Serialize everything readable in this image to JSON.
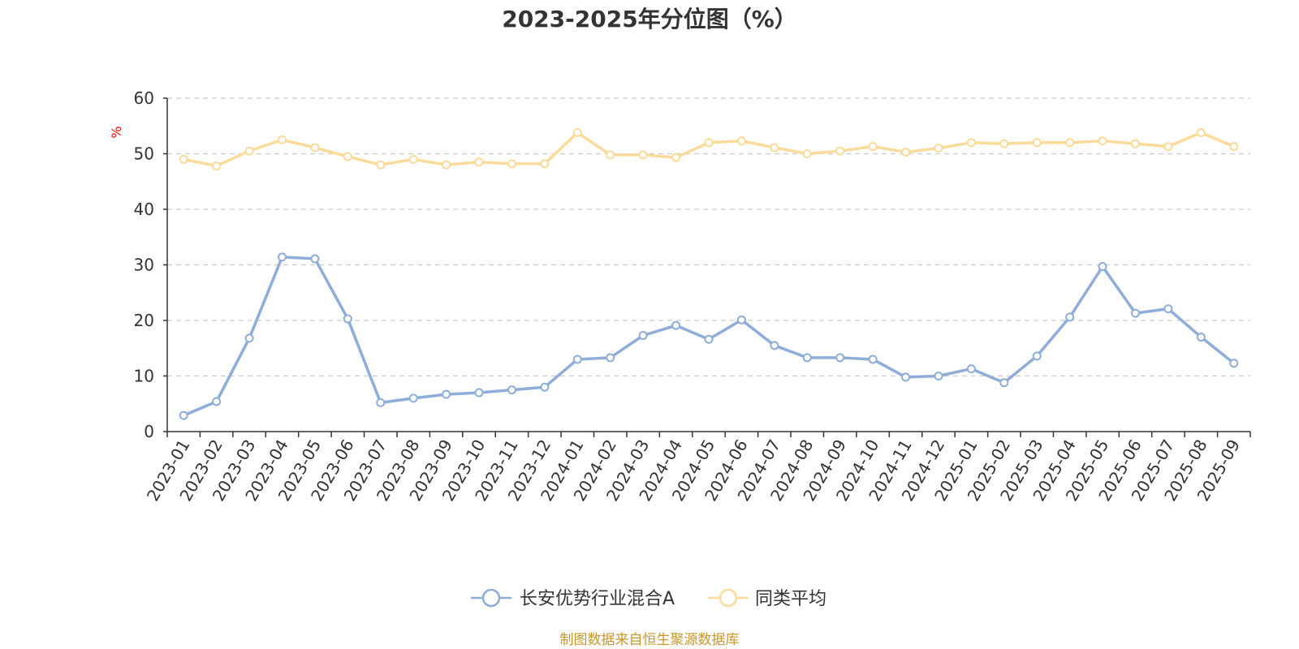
{
  "source_note": "制图数据来自恒生聚源数据库",
  "chart_data": {
    "type": "line",
    "title": "2023-2025年分位图（%）",
    "ylabel": "%",
    "ylim": [
      0,
      60
    ],
    "yticks": [
      0,
      10,
      20,
      30,
      40,
      50,
      60
    ],
    "grid": true,
    "legend_position": "bottom",
    "categories": [
      "2023-01",
      "2023-02",
      "2023-03",
      "2023-04",
      "2023-05",
      "2023-06",
      "2023-07",
      "2023-08",
      "2023-09",
      "2023-10",
      "2023-11",
      "2023-12",
      "2024-01",
      "2024-02",
      "2024-03",
      "2024-04",
      "2024-05",
      "2024-06",
      "2024-07",
      "2024-08",
      "2024-09",
      "2024-10",
      "2024-11",
      "2024-12",
      "2025-01",
      "2025-02",
      "2025-03",
      "2025-04",
      "2025-05",
      "2025-06",
      "2025-07",
      "2025-08",
      "2025-09"
    ],
    "series": [
      {
        "name": "长安优势行业混合A",
        "color": "#8eadd8",
        "values": [
          2.9,
          5.4,
          16.8,
          31.4,
          31.1,
          20.3,
          5.2,
          6.0,
          6.7,
          7.0,
          7.5,
          8.0,
          13.0,
          13.3,
          17.3,
          19.1,
          16.6,
          20.1,
          15.5,
          13.3,
          13.3,
          13.0,
          9.8,
          10.0,
          11.3,
          8.8,
          13.6,
          20.6,
          29.7,
          21.3,
          22.1,
          17.0,
          12.3
        ]
      },
      {
        "name": "同类平均",
        "color": "#fcdb9a",
        "values": [
          49.0,
          47.8,
          50.5,
          52.5,
          51.1,
          49.5,
          48.0,
          49.0,
          48.0,
          48.5,
          48.2,
          48.2,
          53.8,
          49.8,
          49.8,
          49.3,
          52.0,
          52.3,
          51.1,
          50.0,
          50.5,
          51.3,
          50.3,
          51.0,
          52.0,
          51.8,
          52.0,
          52.0,
          52.3,
          51.8,
          51.3,
          53.8,
          51.3
        ]
      }
    ]
  }
}
